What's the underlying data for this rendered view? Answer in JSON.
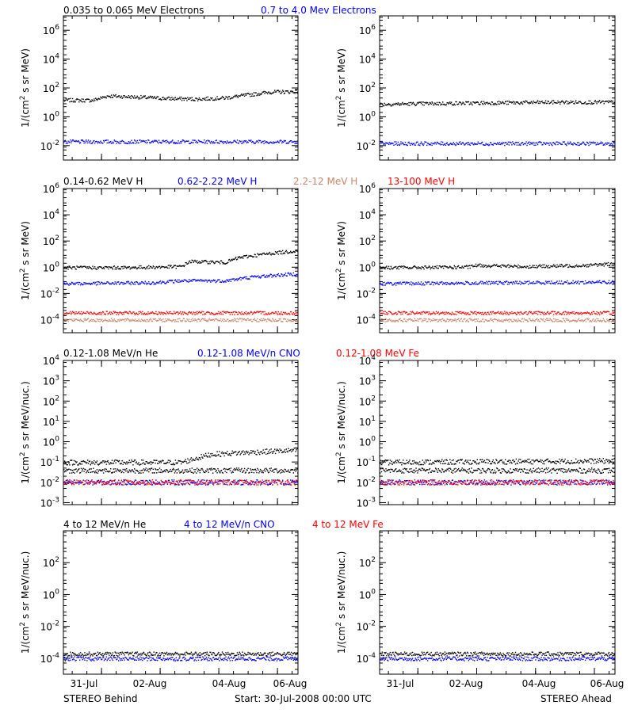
{
  "footer": {
    "left": "STEREO Behind",
    "center": "Start: 30-Jul-2008 00:00 UTC",
    "right": "STEREO Ahead"
  },
  "x_ticks": [
    "31-Jul",
    "02-Aug",
    "04-Aug",
    "06-Aug"
  ],
  "colors": {
    "black": "#000000",
    "blue": "#0000ff",
    "red": "#ff0000",
    "tan": "#c8866a"
  },
  "chart_data": [
    {
      "type": "scatter",
      "panel": "electrons",
      "header": [
        {
          "text": "0.035 to 0.065 MeV Electrons",
          "color": "#000000"
        },
        {
          "text": "0.7 to 4.0 Mev Electrons",
          "color": "#0000ff"
        }
      ],
      "ylabel_main": "1/(cm",
      "ylabel_sup": "2",
      "ylabel_rest": " s sr MeV)",
      "yscale": "log",
      "ylim_exp": [
        -3,
        7
      ],
      "yticks": [
        {
          "b": "10",
          "e": "6"
        },
        {
          "b": "10",
          "e": "4"
        },
        {
          "b": "10",
          "e": "2"
        },
        {
          "b": "10",
          "e": "0"
        },
        {
          "b": "10",
          "e": "-2"
        }
      ],
      "x_days": [
        0,
        8
      ],
      "series": [
        {
          "side": "behind",
          "color": "#000000",
          "x": [
            0,
            1,
            1.5,
            2.5,
            3.5,
            4.5,
            5.5,
            6.5,
            7,
            8
          ],
          "y": [
            15,
            15,
            30,
            25,
            20,
            18,
            22,
            40,
            55,
            60
          ]
        },
        {
          "side": "behind",
          "color": "#0000ff",
          "x": [
            0,
            8
          ],
          "y": [
            0.02,
            0.02
          ]
        },
        {
          "side": "ahead",
          "color": "#000000",
          "x": [
            0,
            2,
            4,
            6,
            8
          ],
          "y": [
            8,
            9,
            10,
            11,
            11
          ]
        },
        {
          "side": "ahead",
          "color": "#0000ff",
          "x": [
            0,
            8
          ],
          "y": [
            0.015,
            0.015
          ]
        }
      ]
    },
    {
      "type": "scatter",
      "panel": "protons",
      "header": [
        {
          "text": "0.14-0.62 MeV H",
          "color": "#000000"
        },
        {
          "text": "0.62-2.22 MeV H",
          "color": "#0000ff"
        },
        {
          "text": "2.2-12 MeV H",
          "color": "#c8866a"
        },
        {
          "text": "13-100 MeV H",
          "color": "#ff0000"
        }
      ],
      "ylabel_main": "1/(cm",
      "ylabel_sup": "2",
      "ylabel_rest": " s sr MeV)",
      "yscale": "log",
      "ylim_exp": [
        -5,
        6
      ],
      "yticks": [
        {
          "b": "10",
          "e": "6"
        },
        {
          "b": "10",
          "e": "4"
        },
        {
          "b": "10",
          "e": "2"
        },
        {
          "b": "10",
          "e": "0"
        },
        {
          "b": "10",
          "e": "-2"
        },
        {
          "b": "10",
          "e": "-4"
        }
      ],
      "x_days": [
        0,
        8
      ],
      "series": [
        {
          "side": "behind",
          "color": "#000000",
          "x": [
            0,
            2,
            4,
            4.3,
            5.5,
            6,
            7,
            8
          ],
          "y": [
            1,
            1,
            1.2,
            3,
            2.5,
            6,
            12,
            20
          ]
        },
        {
          "side": "behind",
          "color": "#0000ff",
          "x": [
            0,
            3,
            4,
            5.5,
            6.5,
            8
          ],
          "y": [
            0.06,
            0.07,
            0.1,
            0.1,
            0.2,
            0.35
          ]
        },
        {
          "side": "behind",
          "color": "#c8866a",
          "x": [
            0,
            8
          ],
          "y": [
            0.0001,
            0.0001
          ]
        },
        {
          "side": "behind",
          "color": "#ff0000",
          "x": [
            0,
            8
          ],
          "y": [
            0.00035,
            0.00035
          ]
        },
        {
          "side": "ahead",
          "color": "#000000",
          "x": [
            0,
            3,
            3.3,
            5,
            7,
            8
          ],
          "y": [
            1,
            1.1,
            1.5,
            1.2,
            1.5,
            2
          ]
        },
        {
          "side": "ahead",
          "color": "#0000ff",
          "x": [
            0,
            8
          ],
          "y": [
            0.06,
            0.08
          ]
        },
        {
          "side": "ahead",
          "color": "#c8866a",
          "x": [
            0,
            8
          ],
          "y": [
            0.0001,
            0.0001
          ]
        },
        {
          "side": "ahead",
          "color": "#ff0000",
          "x": [
            0,
            8
          ],
          "y": [
            0.00035,
            0.00035
          ]
        }
      ]
    },
    {
      "type": "scatter",
      "panel": "heavy-ions-low",
      "header": [
        {
          "text": "0.12-1.08 MeV/n He",
          "color": "#000000"
        },
        {
          "text": "0.12-1.08 MeV/n CNO",
          "color": "#0000ff"
        },
        {
          "text": "0.12-1.08 MeV Fe",
          "color": "#ff0000"
        }
      ],
      "ylabel_main": "1/(cm",
      "ylabel_sup": "2",
      "ylabel_rest": " s sr MeV/nuc.)",
      "yscale": "log",
      "ylim_exp": [
        -3.1,
        4
      ],
      "yticks": [
        {
          "b": "10",
          "e": "4"
        },
        {
          "b": "10",
          "e": "3"
        },
        {
          "b": "10",
          "e": "2"
        },
        {
          "b": "10",
          "e": "1"
        },
        {
          "b": "10",
          "e": "0"
        },
        {
          "b": "10",
          "e": "-1"
        },
        {
          "b": "10",
          "e": "-2"
        },
        {
          "b": "10",
          "e": "-3"
        }
      ],
      "x_days": [
        0,
        8
      ],
      "series": [
        {
          "side": "behind",
          "color": "#000000",
          "x": [
            0,
            8
          ],
          "y": [
            0.04,
            0.04
          ]
        },
        {
          "side": "behind",
          "color": "#000000",
          "x": [
            0,
            4,
            5,
            6,
            8
          ],
          "y": [
            0.1,
            0.1,
            0.25,
            0.3,
            0.4
          ]
        },
        {
          "side": "behind",
          "color": "#0000ff",
          "x": [
            0,
            8
          ],
          "y": [
            0.0105,
            0.0105
          ]
        },
        {
          "side": "behind",
          "color": "#ff0000",
          "x": [
            0,
            8
          ],
          "y": [
            0.0105,
            0.0105
          ]
        },
        {
          "side": "ahead",
          "color": "#000000",
          "x": [
            0,
            8
          ],
          "y": [
            0.04,
            0.04
          ]
        },
        {
          "side": "ahead",
          "color": "#000000",
          "x": [
            0,
            8
          ],
          "y": [
            0.1,
            0.12
          ]
        },
        {
          "side": "ahead",
          "color": "#0000ff",
          "x": [
            0,
            8
          ],
          "y": [
            0.0105,
            0.0105
          ]
        },
        {
          "side": "ahead",
          "color": "#ff0000",
          "x": [
            0,
            8
          ],
          "y": [
            0.0105,
            0.0105
          ]
        }
      ]
    },
    {
      "type": "scatter",
      "panel": "heavy-ions-high",
      "header": [
        {
          "text": "4 to 12 MeV/n He",
          "color": "#000000"
        },
        {
          "text": "4 to 12 MeV/n CNO",
          "color": "#0000ff"
        },
        {
          "text": "4 to 12 MeV Fe",
          "color": "#ff0000"
        }
      ],
      "ylabel_main": "1/(cm",
      "ylabel_sup": "2",
      "ylabel_rest": " s sr MeV/nuc.)",
      "yscale": "log",
      "ylim_exp": [
        -5,
        4
      ],
      "yticks": [
        {
          "b": "10",
          "e": "2"
        },
        {
          "b": "10",
          "e": "0"
        },
        {
          "b": "10",
          "e": "-2"
        },
        {
          "b": "10",
          "e": "-4"
        }
      ],
      "x_days": [
        0,
        8
      ],
      "series": [
        {
          "side": "behind",
          "color": "#0000ff",
          "x": [
            0,
            8
          ],
          "y": [
            0.0001,
            0.0001
          ]
        },
        {
          "side": "behind",
          "color": "#000000",
          "x": [
            0,
            8
          ],
          "y": [
            0.0002,
            0.0002
          ]
        },
        {
          "side": "ahead",
          "color": "#0000ff",
          "x": [
            0,
            8
          ],
          "y": [
            0.0001,
            0.0001
          ]
        },
        {
          "side": "ahead",
          "color": "#000000",
          "x": [
            0,
            8
          ],
          "y": [
            0.0002,
            0.0002
          ]
        }
      ]
    }
  ]
}
